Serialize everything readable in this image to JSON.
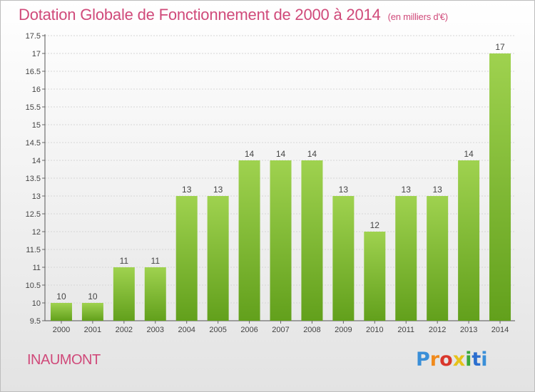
{
  "title": "Dotation Globale de Fonctionnement de 2000 à 2014",
  "subtitle": "(en milliers d'€)",
  "commune": "INAUMONT",
  "logo": {
    "letters": [
      "P",
      "r",
      "o",
      "x",
      "i",
      "t",
      "i"
    ]
  },
  "colors": {
    "bar_top": "#9fd24f",
    "bar_bottom": "#62a01c",
    "title": "#d04a7a"
  },
  "chart_data": {
    "type": "bar",
    "categories": [
      "2000",
      "2001",
      "2002",
      "2003",
      "2004",
      "2005",
      "2006",
      "2007",
      "2008",
      "2009",
      "2010",
      "2011",
      "2012",
      "2013",
      "2014"
    ],
    "values": [
      10,
      10,
      11,
      11,
      13,
      13,
      14,
      14,
      14,
      13,
      12,
      13,
      13,
      14,
      17
    ],
    "data_labels": [
      "10",
      "10",
      "11",
      "11",
      "13",
      "13",
      "14",
      "14",
      "14",
      "13",
      "12",
      "13",
      "13",
      "14",
      "17"
    ],
    "yticks": [
      9.5,
      10,
      10.5,
      11,
      11.5,
      12,
      12.5,
      13,
      13.5,
      14,
      14.5,
      15,
      15.5,
      16,
      16.5,
      17,
      17.5
    ],
    "ytick_labels": [
      "9.5",
      "10",
      "10.5",
      "11",
      "11.5",
      "12",
      "12.5",
      "13",
      "13.5",
      "14",
      "14.5",
      "15",
      "15.5",
      "16",
      "16.5",
      "17",
      "17.5"
    ],
    "ylim": [
      9.5,
      17.5
    ],
    "grid": true,
    "title": "Dotation Globale de Fonctionnement de 2000 à 2014",
    "xlabel": "",
    "ylabel": ""
  }
}
